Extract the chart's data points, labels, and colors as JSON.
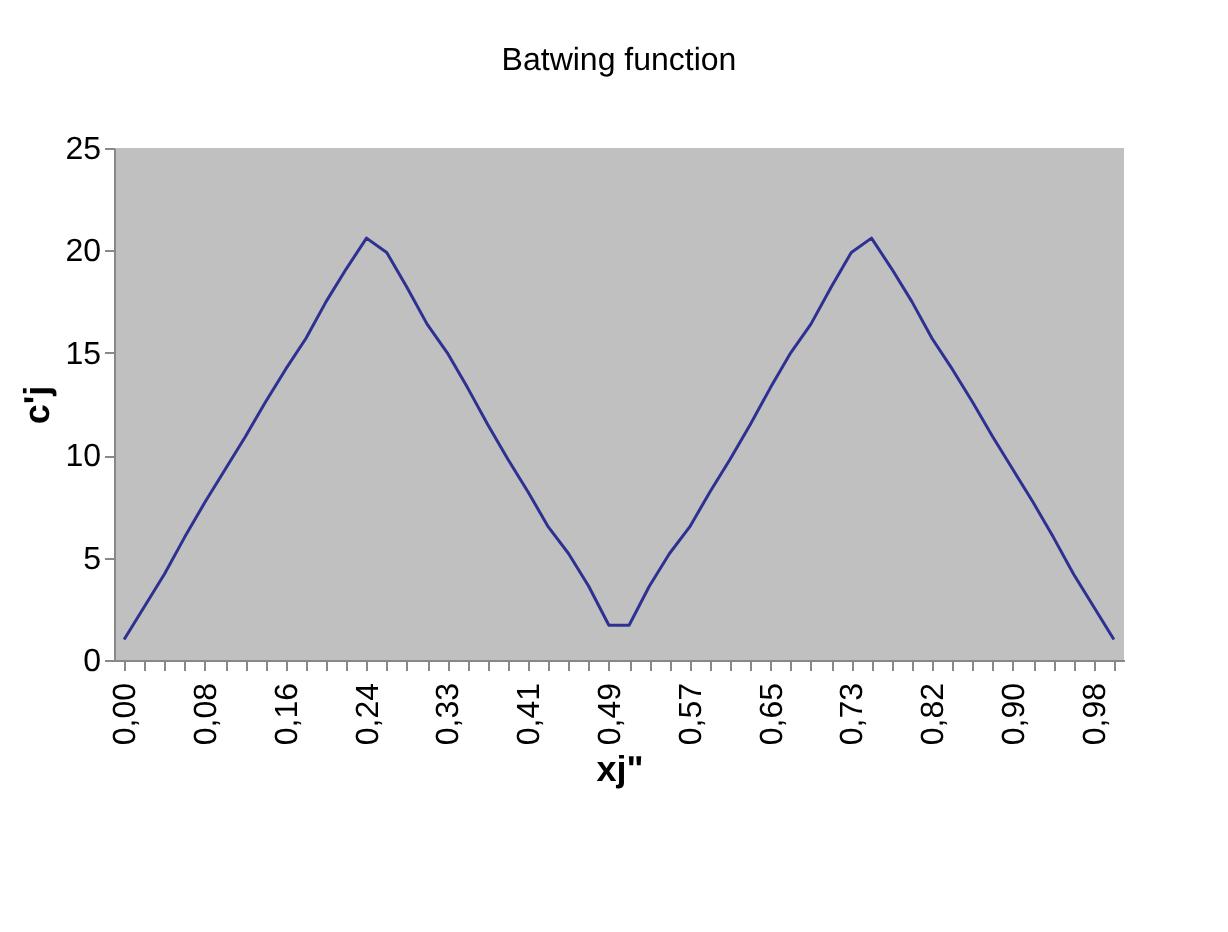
{
  "chart_data": {
    "type": "line",
    "title": "Batwing function",
    "xlabel": "xj\"",
    "ylabel": "c'j",
    "categories": [
      "0,00",
      null,
      null,
      null,
      "0,08",
      null,
      null,
      null,
      "0,16",
      null,
      null,
      null,
      "0,24",
      null,
      null,
      null,
      "0,33",
      null,
      null,
      null,
      "0,41",
      null,
      null,
      null,
      "0,49",
      null,
      null,
      null,
      "0,57",
      null,
      null,
      null,
      "0,65",
      null,
      null,
      null,
      "0,73",
      null,
      null,
      null,
      "0,82",
      null,
      null,
      null,
      "0,90",
      null,
      null,
      null,
      "0,98",
      null
    ],
    "series": [
      {
        "color": "#2e3192",
        "values": [
          1.0,
          2.6,
          4.2,
          6.0,
          7.7,
          9.3,
          10.9,
          12.6,
          14.2,
          15.7,
          17.5,
          19.1,
          20.6,
          19.9,
          18.2,
          16.4,
          15.0,
          13.3,
          11.5,
          9.8,
          8.2,
          6.5,
          5.2,
          3.6,
          1.7,
          1.7,
          3.6,
          5.2,
          6.5,
          8.2,
          9.8,
          11.5,
          13.3,
          15.0,
          16.4,
          18.2,
          19.9,
          20.6,
          19.1,
          17.5,
          15.7,
          14.2,
          12.6,
          10.9,
          9.3,
          7.7,
          6.0,
          4.2,
          2.6,
          1.0
        ]
      }
    ],
    "ylim": [
      0,
      25
    ],
    "yticks": [
      0,
      5,
      10,
      15,
      20,
      25
    ],
    "grid": false,
    "marker": "none",
    "line_style": "solid"
  }
}
